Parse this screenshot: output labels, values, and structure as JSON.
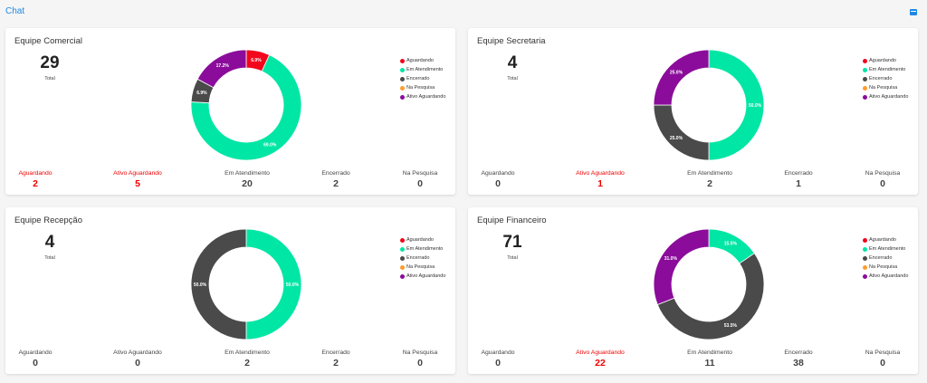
{
  "header": {
    "title": "Chat"
  },
  "colors": {
    "Aguardando": "#f2071c",
    "Em Atendimento": "#00e6a4",
    "Encerrado": "#4a4a4a",
    "Na Pesquisa": "#ff9d2e",
    "Ativo Aguardando": "#8b0c9b",
    "alert": "#ee0000"
  },
  "legend_labels": [
    "Aguardando",
    "Em Atendimento",
    "Encerrado",
    "Na Pesquisa",
    "Ativo Aguardando"
  ],
  "stat_labels": [
    "Aguardando",
    "Ativo Aguardando",
    "Em Atendimento",
    "Encerrado",
    "Na Pesquisa"
  ],
  "total_label": "Total",
  "cards": [
    {
      "title": "Equipe Comercial",
      "total": "29",
      "stats": [
        2,
        5,
        20,
        2,
        0
      ],
      "alert": [
        true,
        true,
        false,
        false,
        false
      ],
      "slices": [
        {
          "status": "Aguardando",
          "value": 6.9,
          "label": "6.9%"
        },
        {
          "status": "Em Atendimento",
          "value": 69.0,
          "label": "69.0%"
        },
        {
          "status": "Encerrado",
          "value": 6.9,
          "label": "6.9%"
        },
        {
          "status": "Ativo Aguardando",
          "value": 17.2,
          "label": "17.2%"
        }
      ]
    },
    {
      "title": "Equipe Secretaria",
      "total": "4",
      "stats": [
        0,
        1,
        2,
        1,
        0
      ],
      "alert": [
        false,
        true,
        false,
        false,
        false
      ],
      "slices": [
        {
          "status": "Em Atendimento",
          "value": 50.0,
          "label": "50.0%"
        },
        {
          "status": "Encerrado",
          "value": 25.0,
          "label": "25.0%"
        },
        {
          "status": "Ativo Aguardando",
          "value": 25.0,
          "label": "25.0%"
        }
      ]
    },
    {
      "title": "Equipe Recepção",
      "total": "4",
      "stats": [
        0,
        0,
        2,
        2,
        0
      ],
      "alert": [
        false,
        false,
        false,
        false,
        false
      ],
      "slices": [
        {
          "status": "Em Atendimento",
          "value": 50.0,
          "label": "50.0%"
        },
        {
          "status": "Encerrado",
          "value": 50.0,
          "label": "50.0%"
        }
      ]
    },
    {
      "title": "Equipe Financeiro",
      "total": "71",
      "stats": [
        0,
        22,
        11,
        38,
        0
      ],
      "alert": [
        false,
        true,
        false,
        false,
        false
      ],
      "slices": [
        {
          "status": "Em Atendimento",
          "value": 15.5,
          "label": "15.5%"
        },
        {
          "status": "Encerrado",
          "value": 53.5,
          "label": "53.5%"
        },
        {
          "status": "Ativo Aguardando",
          "value": 31.0,
          "label": "31.0%"
        }
      ]
    }
  ]
}
